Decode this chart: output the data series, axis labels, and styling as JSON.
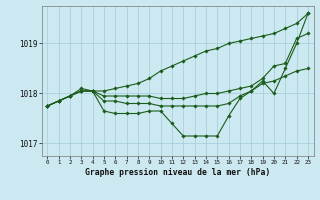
{
  "title": "Graphe pression niveau de la mer (hPa)",
  "hours": [
    0,
    1,
    2,
    3,
    4,
    5,
    6,
    7,
    8,
    9,
    10,
    11,
    12,
    13,
    14,
    15,
    16,
    17,
    18,
    19,
    20,
    21,
    22,
    23
  ],
  "background_color": "#cce8f0",
  "grid_color": "#a0ccd8",
  "line_color": "#1a5c1a",
  "curves": [
    [
      1017.75,
      1017.85,
      1017.95,
      1018.05,
      1018.05,
      1018.05,
      1018.1,
      1018.15,
      1018.2,
      1018.3,
      1018.45,
      1018.55,
      1018.65,
      1018.75,
      1018.85,
      1018.9,
      1019.0,
      1019.05,
      1019.1,
      1019.15,
      1019.2,
      1019.3,
      1019.4,
      1019.6
    ],
    [
      1017.75,
      1017.85,
      1017.95,
      1018.1,
      1018.05,
      1017.95,
      1017.95,
      1017.95,
      1017.95,
      1017.95,
      1017.9,
      1017.9,
      1017.9,
      1017.95,
      1018.0,
      1018.0,
      1018.05,
      1018.1,
      1018.15,
      1018.3,
      1018.55,
      1018.6,
      1019.1,
      1019.2
    ],
    [
      1017.75,
      1017.85,
      1017.95,
      1018.05,
      1018.05,
      1017.85,
      1017.85,
      1017.8,
      1017.8,
      1017.8,
      1017.75,
      1017.75,
      1017.75,
      1017.75,
      1017.75,
      1017.75,
      1017.8,
      1017.95,
      1018.05,
      1018.2,
      1018.25,
      1018.35,
      1018.45,
      1018.5
    ],
    [
      1017.75,
      1017.85,
      1017.95,
      1018.05,
      1018.05,
      1017.65,
      1017.6,
      1017.6,
      1017.6,
      1017.65,
      1017.65,
      1017.4,
      1017.15,
      1017.15,
      1017.15,
      1017.15,
      1017.55,
      1017.9,
      1018.05,
      1018.25,
      1018.0,
      1018.5,
      1019.0,
      1019.6
    ]
  ],
  "ylim": [
    1016.75,
    1019.75
  ],
  "yticks": [
    1017,
    1018,
    1019
  ],
  "xlim": [
    -0.5,
    23.5
  ]
}
